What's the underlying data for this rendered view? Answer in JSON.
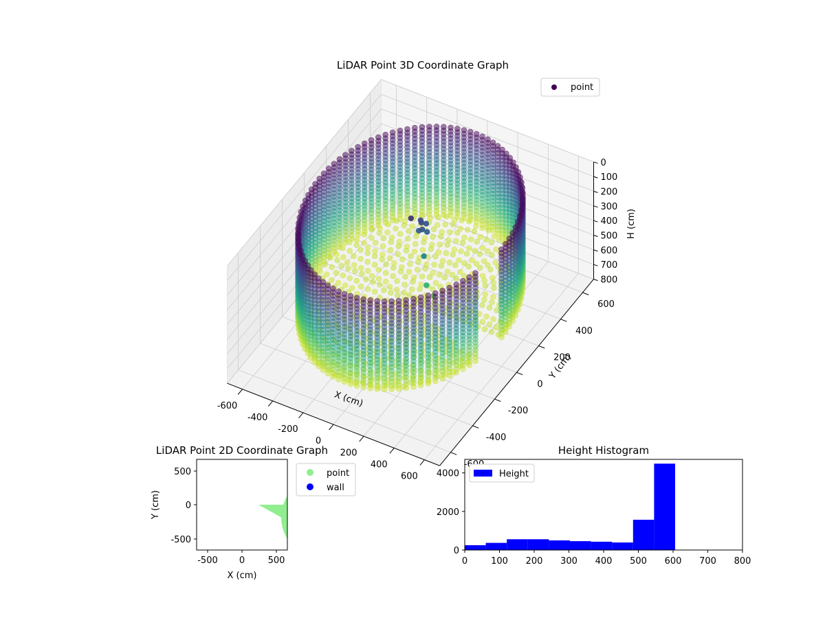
{
  "chart_data": [
    {
      "type": "scatter",
      "projection": "3d",
      "title": "LiDAR Point 3D Coordinate Graph",
      "xlabel": "X (cm)",
      "ylabel": "Y (cm)",
      "zlabel": "H (cm)",
      "xlim": [
        -700,
        700
      ],
      "ylim": [
        -700,
        700
      ],
      "zlim": [
        800,
        0
      ],
      "xticks": [
        "-600",
        "-400",
        "-200",
        "0",
        "200",
        "400",
        "600"
      ],
      "yticks": [
        "-600",
        "-400",
        "-200",
        "0",
        "200",
        "400",
        "600"
      ],
      "zticks": [
        "0",
        "100",
        "200",
        "300",
        "400",
        "500",
        "600",
        "700",
        "800"
      ],
      "grid": true,
      "legend": "top-right",
      "colormap": "viridis",
      "series": [
        {
          "name": "point",
          "shape": "cylindrical wall with a wedge opening toward +X",
          "wall_radius_cm": 600,
          "wall_height_range_cm": [
            0,
            600
          ],
          "floor_height_cm": 600,
          "opening_angle_deg": [
            -18,
            0
          ],
          "cluster_points": [
            {
              "x": 0,
              "y": 100,
              "h": 150
            },
            {
              "x": -20,
              "y": 120,
              "h": 160
            },
            {
              "x": 20,
              "y": 80,
              "h": 170
            },
            {
              "x": 10,
              "y": 130,
              "h": 180
            },
            {
              "x": -10,
              "y": 90,
              "h": 200
            },
            {
              "x": 30,
              "y": 110,
              "h": 210
            },
            {
              "x": -40,
              "y": 60,
              "h": 100
            },
            {
              "x": 60,
              "y": 40,
              "h": 300
            },
            {
              "x": 120,
              "y": -20,
              "h": 420
            },
            {
              "x": 150,
              "y": 0,
              "h": 500
            }
          ]
        }
      ]
    },
    {
      "type": "scatter",
      "title": "LiDAR Point 2D Coordinate Graph",
      "xlabel": "X (cm)",
      "ylabel": "Y (cm)",
      "xlim": [
        -650,
        650
      ],
      "ylim": [
        -650,
        650
      ],
      "xticks": [
        "-500",
        "0",
        "500"
      ],
      "yticks": [
        "500",
        "0",
        "-500"
      ],
      "legend": "outside-right",
      "series": [
        {
          "name": "point",
          "color": "#90ee90",
          "region": "disk radius 600 cm with wedge opening toward +X"
        },
        {
          "name": "wall",
          "color": "#0000ff"
        }
      ]
    },
    {
      "type": "bar",
      "title": "Height Histogram",
      "legend": "top-left",
      "xlim": [
        0,
        800
      ],
      "ylim": [
        0,
        4700
      ],
      "xticks": [
        "0",
        "100",
        "200",
        "300",
        "400",
        "500",
        "600",
        "700",
        "800"
      ],
      "yticks": [
        "0",
        "2000",
        "4000"
      ],
      "color": "#0000ff",
      "series": [
        {
          "name": "Height",
          "bin_edges": [
            0,
            60.6,
            121.2,
            181.8,
            242.4,
            303.0,
            363.6,
            424.2,
            484.8,
            545.4,
            606.0
          ],
          "values": [
            250,
            370,
            560,
            560,
            500,
            460,
            430,
            390,
            1570,
            4480
          ]
        }
      ]
    }
  ]
}
